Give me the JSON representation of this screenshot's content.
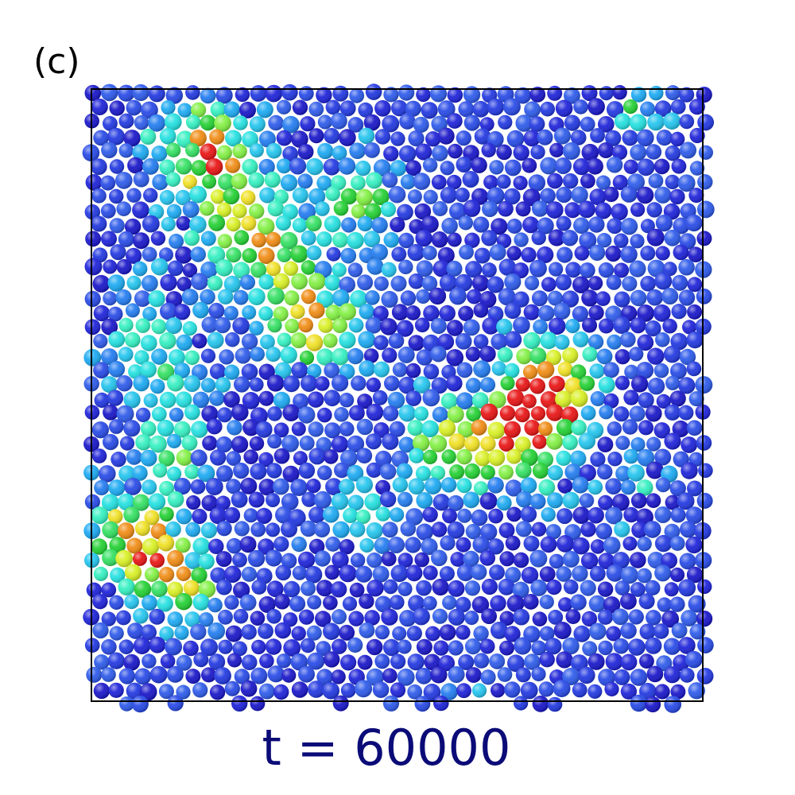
{
  "panel_label": "(c)",
  "caption": "t = 60000"
}
